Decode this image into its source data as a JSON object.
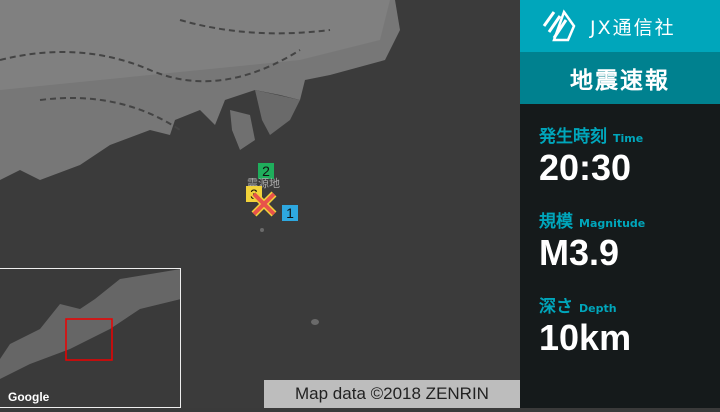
{
  "brand": {
    "name": "JX通信社",
    "logo_icon": "jx-logo-icon"
  },
  "panel": {
    "title": "地震速報",
    "time": {
      "label": "発生時刻",
      "label_en": "Time",
      "value": "20:30"
    },
    "magnitude": {
      "label": "規模",
      "label_en": "Magnitude",
      "value": "M3.9"
    },
    "depth": {
      "label": "深さ",
      "label_en": "Depth",
      "value": "10km"
    }
  },
  "map": {
    "epicenter_label": "震源地",
    "stations": [
      {
        "n": "1",
        "color": "#2ea8e0"
      },
      {
        "n": "2",
        "color": "#1fae5c"
      },
      {
        "n": "3",
        "color": "#f1d23a"
      }
    ],
    "epicenter_color": "#e8534a",
    "credit": "Map data ©2018 ZENRIN",
    "google": "Google",
    "accent": "#00a6bb"
  }
}
